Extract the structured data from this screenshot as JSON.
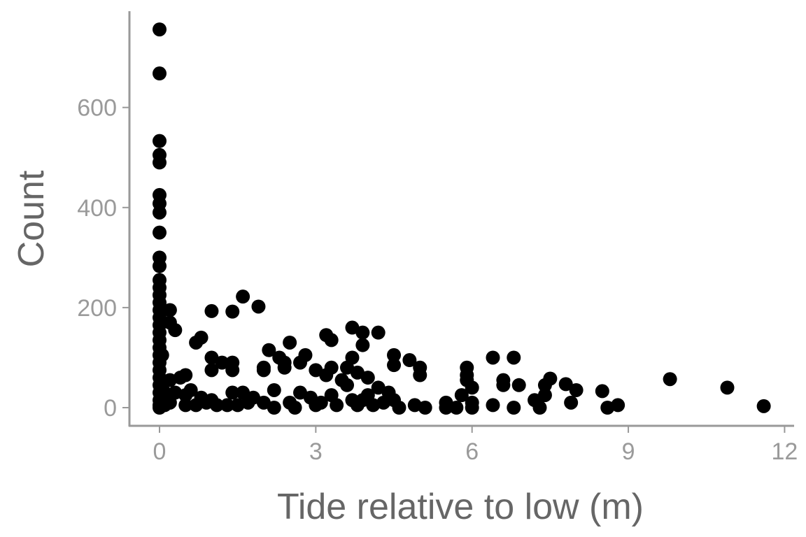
{
  "chart_data": {
    "type": "scatter",
    "title": "",
    "xlabel": "Tide relative to low (m)",
    "ylabel": "Count",
    "xlim": [
      -0.5,
      12.2
    ],
    "ylim": [
      -35,
      790
    ],
    "x_ticks": [
      0,
      3,
      6,
      9,
      12
    ],
    "x_tick_labels": [
      "0",
      "3",
      "6",
      "9",
      "12"
    ],
    "y_ticks": [
      0,
      200,
      400,
      600
    ],
    "y_tick_labels": [
      "0",
      "200",
      "400",
      "600"
    ],
    "grid": false,
    "legend": null,
    "point_color": "#000000",
    "axis_color": "#999999",
    "points": [
      [
        0,
        756
      ],
      [
        0,
        668
      ],
      [
        0,
        533
      ],
      [
        0,
        505
      ],
      [
        0,
        490
      ],
      [
        0,
        425
      ],
      [
        0,
        408
      ],
      [
        0,
        390
      ],
      [
        0,
        350
      ],
      [
        0,
        300
      ],
      [
        0,
        283
      ],
      [
        0,
        255
      ],
      [
        0,
        240
      ],
      [
        0,
        225
      ],
      [
        0,
        210
      ],
      [
        0,
        195
      ],
      [
        0,
        180
      ],
      [
        0,
        165
      ],
      [
        0,
        150
      ],
      [
        0,
        135
      ],
      [
        0,
        120
      ],
      [
        0,
        105
      ],
      [
        0,
        90
      ],
      [
        0,
        75
      ],
      [
        0,
        60
      ],
      [
        0,
        45
      ],
      [
        0,
        30
      ],
      [
        0,
        15
      ],
      [
        0,
        5
      ],
      [
        0,
        0
      ],
      [
        0.05,
        105
      ],
      [
        0.1,
        30
      ],
      [
        0.1,
        5
      ],
      [
        0.2,
        195
      ],
      [
        0.2,
        170
      ],
      [
        0.2,
        55
      ],
      [
        0.2,
        10
      ],
      [
        0.3,
        155
      ],
      [
        0.3,
        30
      ],
      [
        0.4,
        60
      ],
      [
        0.5,
        65
      ],
      [
        0.5,
        25
      ],
      [
        0.5,
        5
      ],
      [
        0.6,
        35
      ],
      [
        0.7,
        130
      ],
      [
        0.7,
        5
      ],
      [
        0.8,
        140
      ],
      [
        0.8,
        20
      ],
      [
        0.9,
        10
      ],
      [
        1.0,
        193
      ],
      [
        1.0,
        100
      ],
      [
        1.0,
        75
      ],
      [
        1.0,
        15
      ],
      [
        1.1,
        5
      ],
      [
        1.2,
        90
      ],
      [
        1.3,
        5
      ],
      [
        1.4,
        192
      ],
      [
        1.4,
        90
      ],
      [
        1.4,
        75
      ],
      [
        1.4,
        30
      ],
      [
        1.5,
        5
      ],
      [
        1.6,
        222
      ],
      [
        1.6,
        30
      ],
      [
        1.7,
        10
      ],
      [
        1.8,
        20
      ],
      [
        1.9,
        202
      ],
      [
        2.0,
        80
      ],
      [
        2.0,
        75
      ],
      [
        2.0,
        10
      ],
      [
        2.1,
        115
      ],
      [
        2.2,
        35
      ],
      [
        2.2,
        0
      ],
      [
        2.3,
        100
      ],
      [
        2.4,
        80
      ],
      [
        2.4,
        90
      ],
      [
        2.5,
        10
      ],
      [
        2.5,
        130
      ],
      [
        2.6,
        0
      ],
      [
        2.7,
        90
      ],
      [
        2.7,
        30
      ],
      [
        2.8,
        105
      ],
      [
        2.9,
        20
      ],
      [
        3.0,
        75
      ],
      [
        3.0,
        5
      ],
      [
        3.1,
        10
      ],
      [
        3.2,
        145
      ],
      [
        3.2,
        65
      ],
      [
        3.3,
        135
      ],
      [
        3.3,
        80
      ],
      [
        3.3,
        25
      ],
      [
        3.4,
        5
      ],
      [
        3.5,
        55
      ],
      [
        3.6,
        80
      ],
      [
        3.6,
        45
      ],
      [
        3.7,
        160
      ],
      [
        3.7,
        100
      ],
      [
        3.7,
        15
      ],
      [
        3.8,
        70
      ],
      [
        3.8,
        5
      ],
      [
        3.9,
        150
      ],
      [
        3.9,
        125
      ],
      [
        3.9,
        15
      ],
      [
        4.0,
        60
      ],
      [
        4.0,
        25
      ],
      [
        4.1,
        5
      ],
      [
        4.2,
        150
      ],
      [
        4.2,
        40
      ],
      [
        4.3,
        10
      ],
      [
        4.4,
        30
      ],
      [
        4.5,
        105
      ],
      [
        4.5,
        85
      ],
      [
        4.5,
        15
      ],
      [
        4.6,
        0
      ],
      [
        4.8,
        95
      ],
      [
        4.9,
        5
      ],
      [
        5.0,
        80
      ],
      [
        5.0,
        65
      ],
      [
        5.1,
        0
      ],
      [
        5.5,
        10
      ],
      [
        5.5,
        0
      ],
      [
        5.7,
        0
      ],
      [
        5.8,
        25
      ],
      [
        5.9,
        80
      ],
      [
        5.9,
        65
      ],
      [
        5.9,
        55
      ],
      [
        6.0,
        40
      ],
      [
        6.0,
        10
      ],
      [
        6.0,
        0
      ],
      [
        6.4,
        100
      ],
      [
        6.4,
        5
      ],
      [
        6.6,
        55
      ],
      [
        6.6,
        45
      ],
      [
        6.8,
        100
      ],
      [
        6.8,
        0
      ],
      [
        6.9,
        45
      ],
      [
        7.2,
        15
      ],
      [
        7.3,
        0
      ],
      [
        7.4,
        45
      ],
      [
        7.4,
        25
      ],
      [
        7.5,
        58
      ],
      [
        7.8,
        47
      ],
      [
        7.9,
        10
      ],
      [
        8.0,
        35
      ],
      [
        8.5,
        33
      ],
      [
        8.6,
        0
      ],
      [
        8.8,
        5
      ],
      [
        9.8,
        57
      ],
      [
        10.9,
        40
      ],
      [
        11.6,
        3
      ]
    ]
  }
}
